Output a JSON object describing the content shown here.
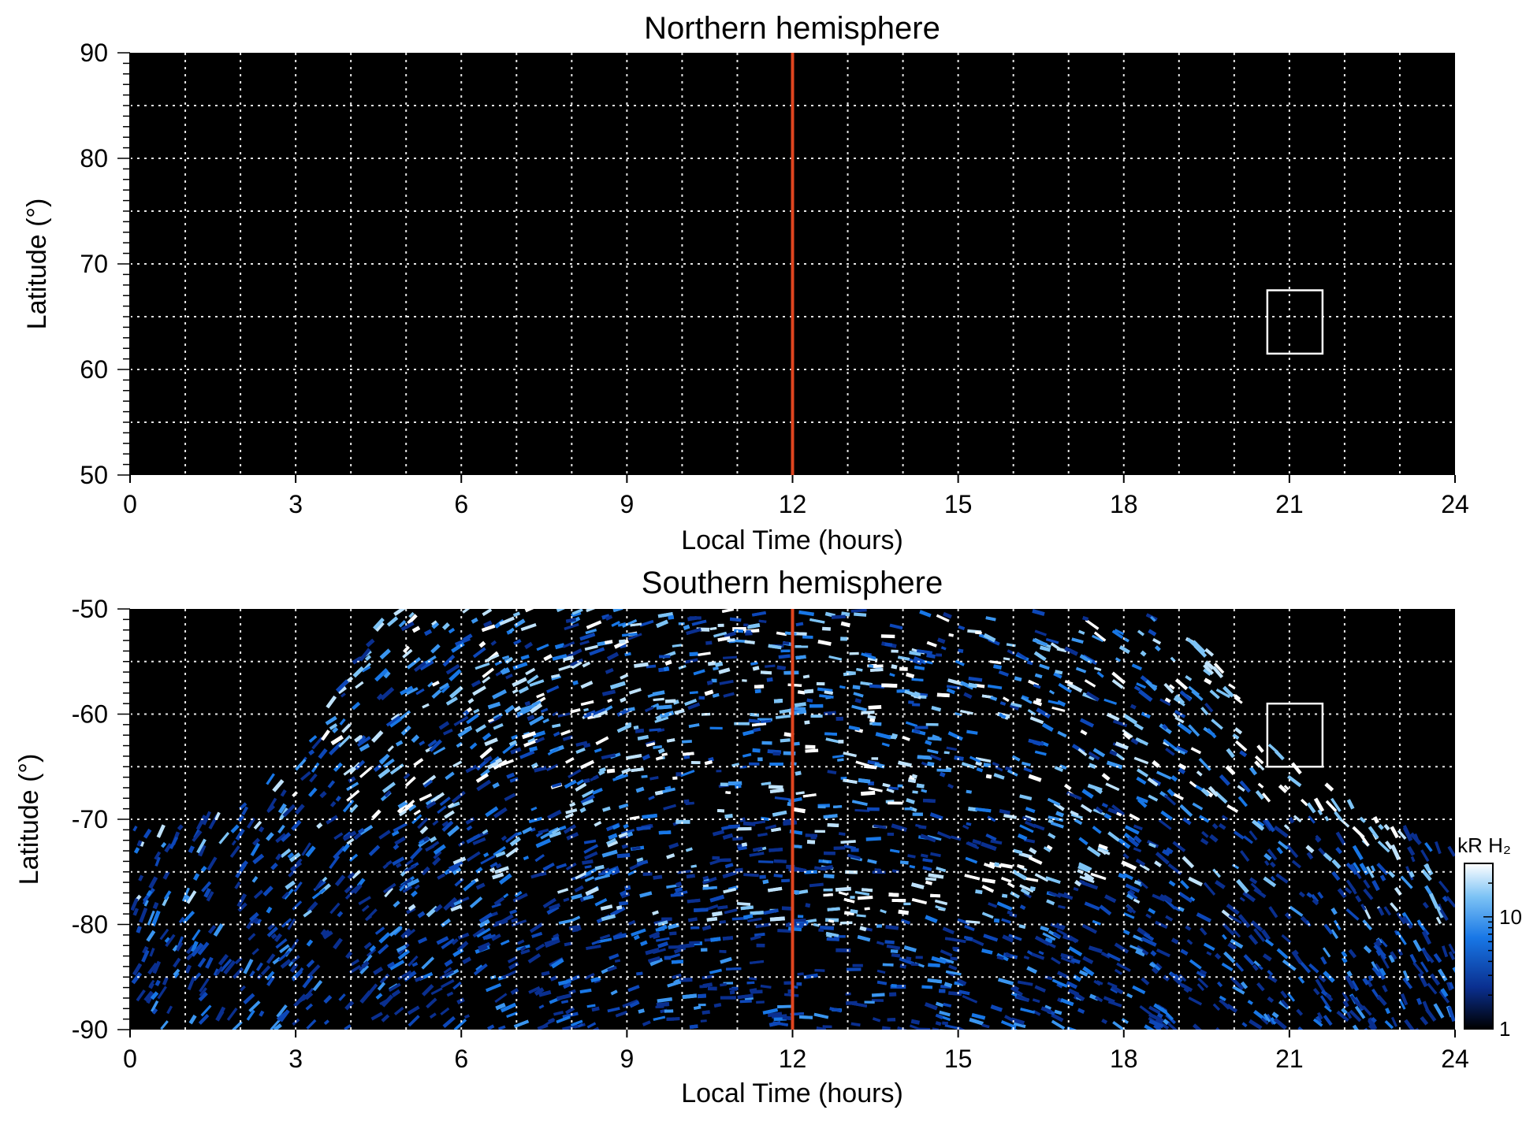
{
  "chart_data": [
    {
      "type": "heatmap",
      "title": "Northern hemisphere",
      "xlabel": "Local Time (hours)",
      "ylabel": "Latitude (°)",
      "xlim": [
        0,
        24
      ],
      "ylim": [
        50,
        90
      ],
      "x_ticks": [
        "0",
        "3",
        "6",
        "9",
        "12",
        "15",
        "18",
        "21",
        "24"
      ],
      "y_ticks": [
        "90",
        "80",
        "70",
        "60",
        "50"
      ],
      "grid": true,
      "background": "#000000",
      "emission": "none",
      "marker_line": {
        "x": 12,
        "color": "#e0451f"
      },
      "box": {
        "x": [
          20.6,
          21.6
        ],
        "y": [
          61.5,
          67.5
        ]
      }
    },
    {
      "type": "heatmap",
      "title": "Southern hemisphere",
      "xlabel": "Local Time (hours)",
      "ylabel": "Latitude (°)",
      "xlim": [
        0,
        24
      ],
      "ylim": [
        -90,
        -50
      ],
      "x_ticks": [
        "0",
        "3",
        "6",
        "9",
        "12",
        "15",
        "18",
        "21",
        "24"
      ],
      "y_ticks": [
        "-50",
        "-60",
        "-70",
        "-80",
        "-90"
      ],
      "grid": true,
      "background": "#000000",
      "emission": "speckled blue H2 auroral emission covering dayside, bright arcs near LT 13-18 at -73 to -80",
      "coverage_edge": [
        {
          "lt": 0,
          "lat": -70.5
        },
        {
          "lt": 1.5,
          "lat": -69.5
        },
        {
          "lt": 3,
          "lat": -64
        },
        {
          "lt": 4,
          "lat": -55
        },
        {
          "lt": 4.5,
          "lat": -50
        },
        {
          "lt": 19,
          "lat": -50
        },
        {
          "lt": 20,
          "lat": -57
        },
        {
          "lt": 21,
          "lat": -64
        },
        {
          "lt": 22.5,
          "lat": -69
        },
        {
          "lt": 24,
          "lat": -71
        }
      ],
      "marker_line": {
        "x": 12,
        "color": "#e0451f"
      },
      "box": {
        "x": [
          20.6,
          21.6
        ],
        "y": [
          -65,
          -59
        ]
      },
      "colorbar": {
        "label": "kR H₂",
        "scale": "log",
        "range": [
          1,
          30
        ],
        "ticks": [
          "1",
          "10"
        ],
        "colors": [
          "#000000",
          "#0a2f8f",
          "#1877e6",
          "#7dc3f5",
          "#ffffff"
        ]
      }
    }
  ]
}
